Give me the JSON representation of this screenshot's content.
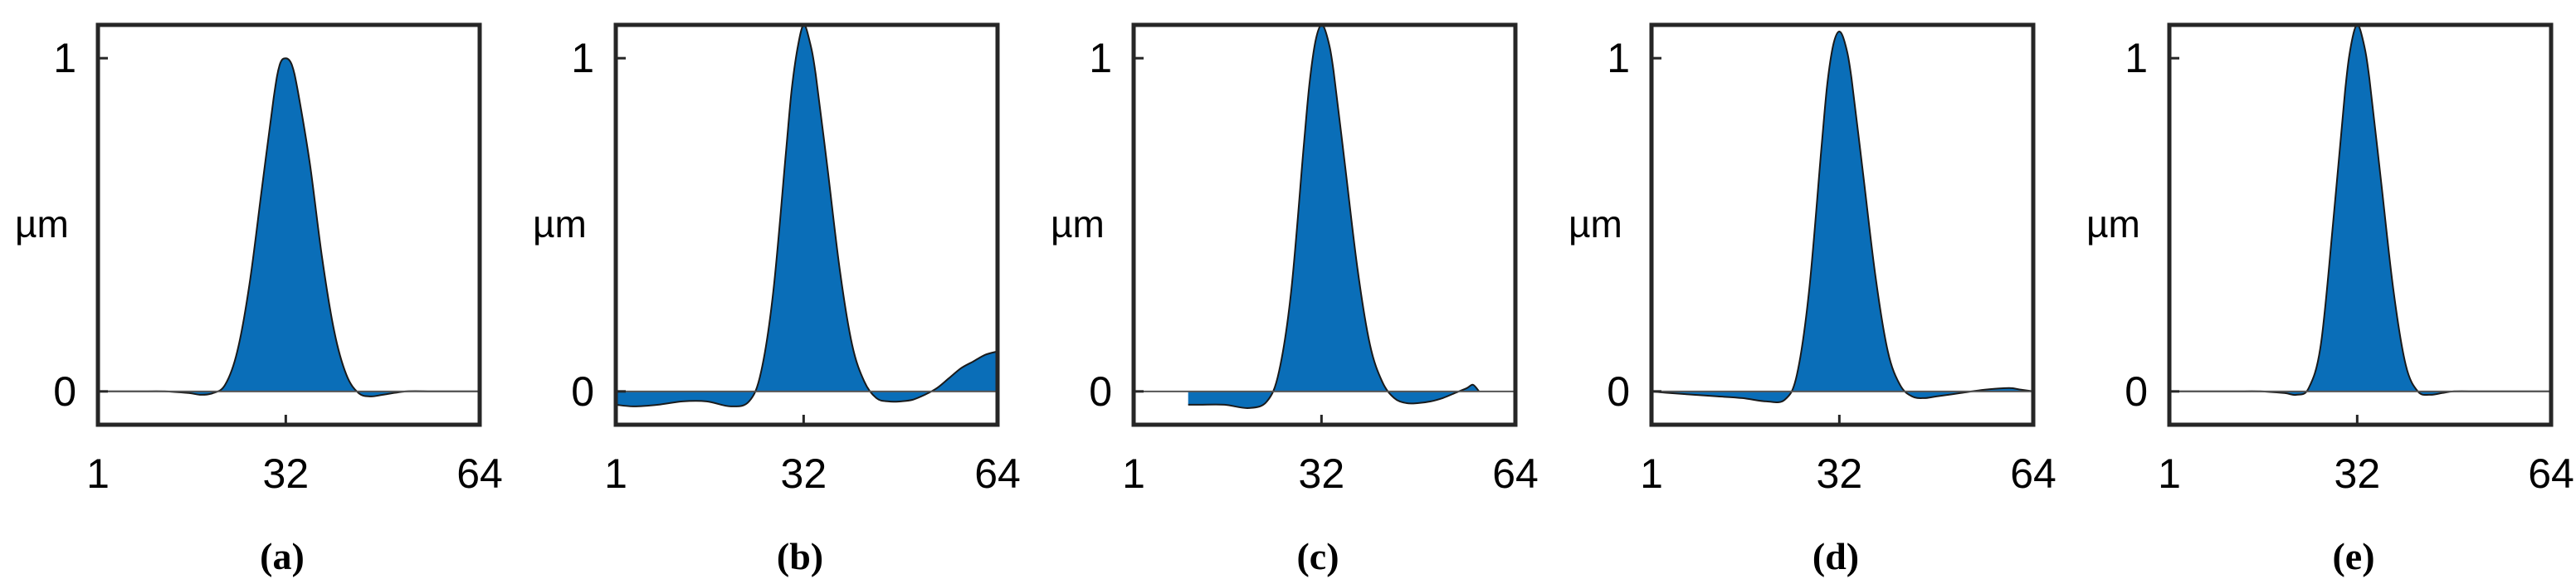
{
  "figure": {
    "panels_count": 5
  },
  "chart_data": [
    {
      "type": "area",
      "caption": "(a)",
      "ylabel": "µm",
      "xticks": [
        "1",
        "32",
        "64"
      ],
      "yticks": [
        "0",
        "1"
      ],
      "xlim": [
        1,
        64
      ],
      "ylim": [
        -0.1,
        1.1
      ],
      "color": "#0a6eb8",
      "x": [
        1,
        4,
        8,
        12,
        16,
        18,
        20,
        22,
        24,
        26,
        28,
        30,
        31,
        32,
        33,
        34,
        36,
        38,
        40,
        42,
        44,
        46,
        48,
        52,
        56,
        60,
        64
      ],
      "y": [
        0,
        0,
        0,
        0,
        -0.005,
        -0.01,
        -0.005,
        0.02,
        0.12,
        0.32,
        0.6,
        0.88,
        0.98,
        1.0,
        0.98,
        0.9,
        0.68,
        0.4,
        0.18,
        0.05,
        -0.005,
        -0.015,
        -0.01,
        0,
        0,
        0,
        0
      ]
    },
    {
      "type": "area",
      "caption": "(b)",
      "ylabel": "µm",
      "xticks": [
        "1",
        "32",
        "64"
      ],
      "yticks": [
        "0",
        "1"
      ],
      "xlim": [
        1,
        64
      ],
      "ylim": [
        -0.1,
        1.1
      ],
      "color": "#0a6eb8",
      "x": [
        1,
        4,
        8,
        12,
        16,
        20,
        23,
        25,
        27,
        29,
        30,
        31,
        32,
        33,
        34,
        36,
        38,
        40,
        42,
        44,
        46,
        48,
        50,
        52,
        54,
        56,
        58,
        60,
        62,
        64
      ],
      "y": [
        -0.04,
        -0.045,
        -0.04,
        -0.03,
        -0.03,
        -0.045,
        -0.03,
        0.06,
        0.3,
        0.7,
        0.9,
        1.03,
        1.1,
        1.05,
        0.95,
        0.66,
        0.36,
        0.14,
        0.03,
        -0.02,
        -0.03,
        -0.03,
        -0.025,
        -0.01,
        0.01,
        0.04,
        0.07,
        0.09,
        0.11,
        0.12
      ]
    },
    {
      "type": "area",
      "caption": "(c)",
      "ylabel": "µm",
      "xticks": [
        "1",
        "32",
        "64"
      ],
      "yticks": [
        "0",
        "1"
      ],
      "xlim": [
        1,
        64
      ],
      "ylim": [
        -0.1,
        1.1
      ],
      "color": "#0a6eb8",
      "x": [
        10,
        12,
        16,
        20,
        23,
        25,
        27,
        29,
        30,
        31,
        32,
        33,
        34,
        36,
        38,
        40,
        42,
        44,
        46,
        48,
        50,
        52,
        54,
        56,
        57,
        58
      ],
      "y": [
        -0.04,
        -0.04,
        -0.04,
        -0.05,
        -0.03,
        0.06,
        0.3,
        0.72,
        0.92,
        1.05,
        1.1,
        1.06,
        0.96,
        0.66,
        0.36,
        0.14,
        0.03,
        -0.02,
        -0.035,
        -0.035,
        -0.03,
        -0.02,
        -0.005,
        0.01,
        0.02,
        0
      ]
    },
    {
      "type": "area",
      "caption": "(d)",
      "ylabel": "µm",
      "xticks": [
        "1",
        "32",
        "64"
      ],
      "yticks": [
        "0",
        "1"
      ],
      "xlim": [
        1,
        64
      ],
      "ylim": [
        -0.1,
        1.1
      ],
      "color": "#0a6eb8",
      "x": [
        1,
        4,
        8,
        12,
        16,
        20,
        23,
        25,
        27,
        29,
        30,
        31,
        32,
        33,
        34,
        36,
        38,
        40,
        42,
        44,
        46,
        48,
        52,
        56,
        60,
        62,
        64
      ],
      "y": [
        0,
        -0.005,
        -0.01,
        -0.015,
        -0.02,
        -0.03,
        -0.025,
        0.05,
        0.3,
        0.72,
        0.92,
        1.04,
        1.08,
        1.04,
        0.94,
        0.64,
        0.34,
        0.12,
        0.02,
        -0.015,
        -0.02,
        -0.015,
        -0.005,
        0.005,
        0.01,
        0.005,
        0
      ]
    },
    {
      "type": "area",
      "caption": "(e)",
      "ylabel": "µm",
      "xticks": [
        "1",
        "32",
        "64"
      ],
      "yticks": [
        "0",
        "1"
      ],
      "xlim": [
        1,
        64
      ],
      "ylim": [
        -0.1,
        1.1
      ],
      "color": "#0a6eb8",
      "x": [
        1,
        4,
        8,
        12,
        16,
        20,
        22,
        24,
        26,
        28,
        30,
        31,
        32,
        33,
        34,
        36,
        38,
        40,
        42,
        44,
        46,
        48,
        52,
        56,
        60,
        64
      ],
      "y": [
        0,
        0,
        0,
        0,
        0,
        -0.005,
        -0.01,
        0.01,
        0.14,
        0.5,
        0.9,
        1.04,
        1.1,
        1.05,
        0.94,
        0.62,
        0.3,
        0.08,
        0,
        -0.01,
        -0.005,
        0,
        0,
        0,
        0,
        0
      ]
    }
  ]
}
